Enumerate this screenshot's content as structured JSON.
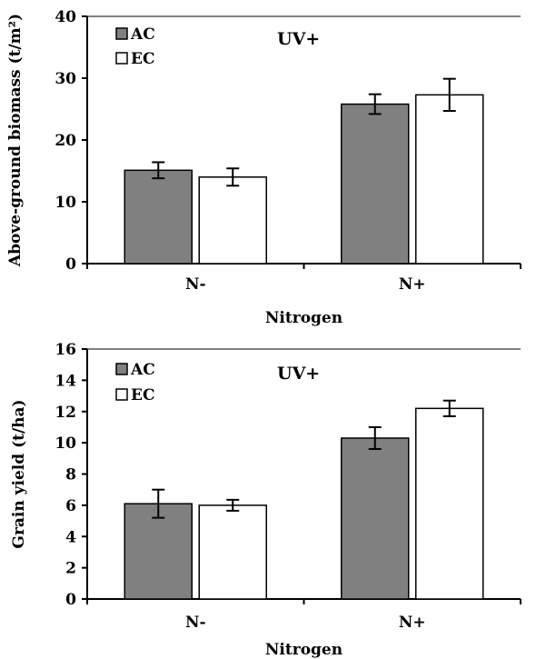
{
  "chart_data": [
    {
      "type": "bar",
      "annotation": "UV+",
      "categories": [
        "N-",
        "N+"
      ],
      "xlabel": "Nitrogen",
      "ylabel": "Above-ground biomass (t/m²)",
      "ylim": [
        0,
        40
      ],
      "yticks": [
        "0",
        "10",
        "20",
        "30",
        "40"
      ],
      "legend_position": "top-left",
      "series": [
        {
          "name": "AC",
          "color": "#808080",
          "values": [
            15.1,
            25.8
          ],
          "errors": [
            1.3,
            1.6
          ]
        },
        {
          "name": "EC",
          "color": "#ffffff",
          "values": [
            14.0,
            27.3
          ],
          "errors": [
            1.4,
            2.6
          ]
        }
      ]
    },
    {
      "type": "bar",
      "annotation": "UV+",
      "categories": [
        "N-",
        "N+"
      ],
      "xlabel": "Nitrogen",
      "ylabel": "Grain yield (t/ha)",
      "ylim": [
        0,
        16
      ],
      "yticks": [
        "0",
        "2",
        "4",
        "6",
        "8",
        "10",
        "12",
        "14",
        "16"
      ],
      "legend_position": "top-left",
      "series": [
        {
          "name": "AC",
          "color": "#808080",
          "values": [
            6.1,
            10.3
          ],
          "errors": [
            0.9,
            0.7
          ]
        },
        {
          "name": "EC",
          "color": "#ffffff",
          "values": [
            6.0,
            12.2
          ],
          "errors": [
            0.35,
            0.5
          ]
        }
      ]
    }
  ]
}
